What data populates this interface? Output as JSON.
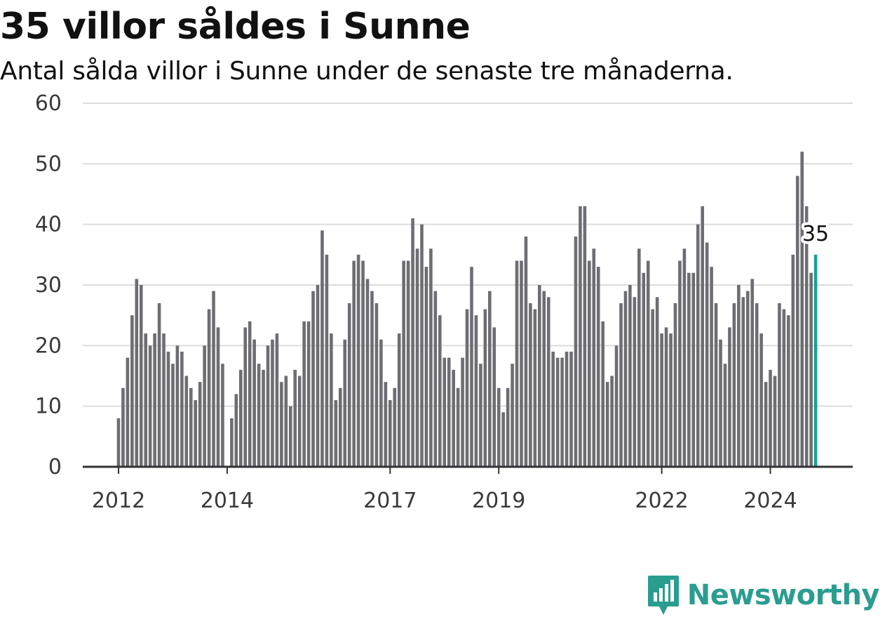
{
  "title": "35 villor såldes i Sunne",
  "subtitle": "Antal sålda villor i Sunne under de senaste tre månaderna.",
  "brand": "Newsworthy",
  "colors": {
    "bar": "#6e6d73",
    "highlight": "#14a394",
    "grid": "#dcdcdc",
    "axis": "#333333",
    "brand": "#2a9d8f"
  },
  "chart_data": {
    "type": "bar",
    "title": "35 villor såldes i Sunne",
    "subtitle": "Antal sålda villor i Sunne under de senaste tre månaderna.",
    "xlabel": "",
    "ylabel": "",
    "ylim": [
      0,
      60
    ],
    "yticks": [
      0,
      10,
      20,
      30,
      40,
      50,
      60
    ],
    "xtick_labels": [
      "2012",
      "2014",
      "2017",
      "2019",
      "2022",
      "2024"
    ],
    "grid": true,
    "x_start": "2012-01",
    "x_end": "2024-10",
    "values": [
      8,
      13,
      18,
      25,
      31,
      30,
      22,
      20,
      22,
      27,
      22,
      19,
      17,
      20,
      19,
      15,
      13,
      11,
      14,
      20,
      26,
      29,
      23,
      17,
      null,
      8,
      12,
      16,
      23,
      24,
      21,
      17,
      16,
      20,
      21,
      22,
      14,
      15,
      10,
      16,
      15,
      24,
      24,
      29,
      30,
      39,
      35,
      22,
      11,
      13,
      21,
      27,
      34,
      35,
      34,
      31,
      29,
      27,
      21,
      14,
      11,
      13,
      22,
      34,
      34,
      41,
      36,
      40,
      33,
      36,
      29,
      25,
      18,
      18,
      16,
      13,
      18,
      26,
      33,
      25,
      17,
      26,
      29,
      23,
      13,
      9,
      13,
      17,
      34,
      34,
      38,
      27,
      26,
      30,
      29,
      28,
      19,
      18,
      18,
      19,
      19,
      38,
      43,
      43,
      34,
      36,
      33,
      24,
      14,
      15,
      20,
      27,
      29,
      30,
      28,
      36,
      32,
      34,
      26,
      28,
      22,
      23,
      22,
      27,
      34,
      36,
      32,
      32,
      40,
      43,
      37,
      33,
      27,
      21,
      17,
      23,
      27,
      30,
      28,
      29,
      31,
      27,
      22,
      14,
      16,
      15,
      27,
      26,
      25,
      35,
      48,
      52,
      43,
      32,
      35
    ],
    "highlight_last": true,
    "annotations": [
      {
        "label": "35",
        "target": "last"
      }
    ]
  }
}
